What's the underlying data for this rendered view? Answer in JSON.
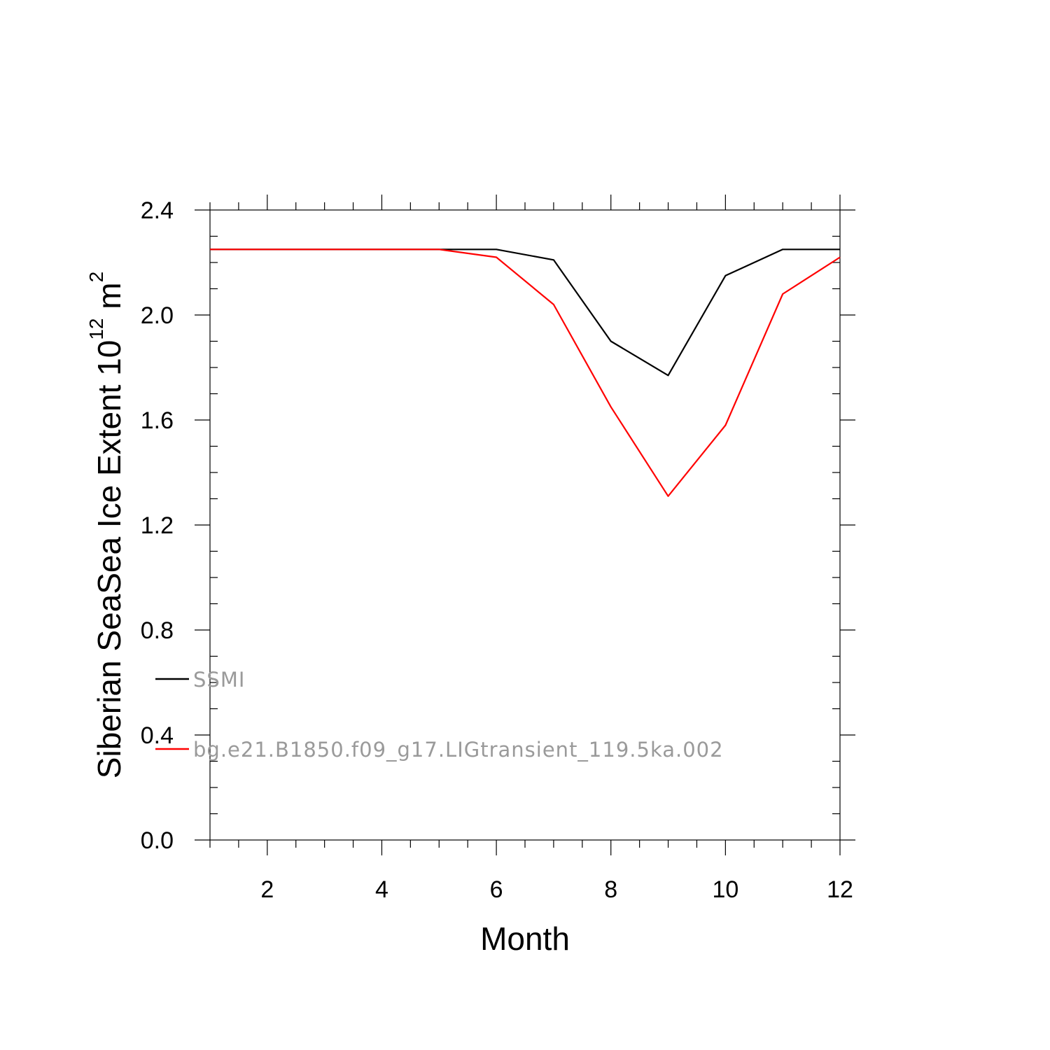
{
  "chart_data": {
    "type": "line",
    "xlabel": "Month",
    "ylabel": {
      "text": "Siberian SeaSea Ice Extent 10",
      "sup1": "12",
      "unit": " m",
      "sup2": "2"
    },
    "xlim": [
      1,
      12
    ],
    "ylim": [
      0.0,
      2.4
    ],
    "x_ticks": [
      2,
      4,
      6,
      8,
      10,
      12
    ],
    "y_ticks": [
      "0.0",
      "0.4",
      "0.8",
      "1.2",
      "1.6",
      "2.0",
      "2.4"
    ],
    "grid": false,
    "legend_placement": "lower-left",
    "series": [
      {
        "name": "SSMI",
        "color": "#000000",
        "x": [
          1,
          2,
          3,
          4,
          5,
          6,
          7,
          8,
          9,
          10,
          11,
          12
        ],
        "values": [
          2.25,
          2.25,
          2.25,
          2.25,
          2.25,
          2.25,
          2.21,
          1.9,
          1.77,
          2.15,
          2.25,
          2.25
        ]
      },
      {
        "name": "bg.e21.B1850.f09_g17.LIGtransient_119.5ka.002",
        "color": "#ff0000",
        "x": [
          1,
          2,
          3,
          4,
          5,
          6,
          7,
          8,
          9,
          10,
          11,
          12
        ],
        "values": [
          2.25,
          2.25,
          2.25,
          2.25,
          2.25,
          2.22,
          2.04,
          1.65,
          1.31,
          1.58,
          2.08,
          2.22
        ]
      }
    ]
  }
}
